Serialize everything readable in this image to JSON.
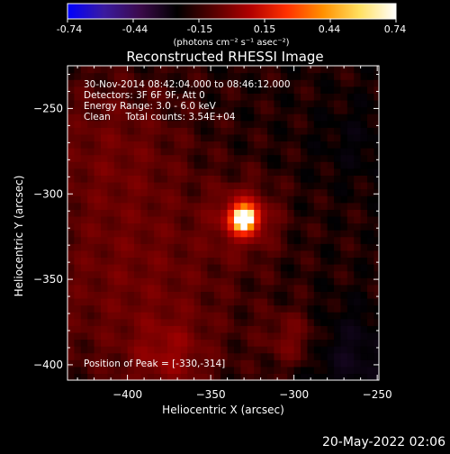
{
  "colorbar": {
    "tick_labels": [
      "-0.74",
      "-0.44",
      "-0.15",
      "0.15",
      "0.44",
      "0.74"
    ],
    "units_label": "(photons cm⁻² s⁻¹ asec⁻²)",
    "min": -0.74,
    "max": 0.74,
    "colors": [
      "#0000ff",
      "#3a1aa0",
      "#3b0a4a",
      "#000000",
      "#550000",
      "#b00000",
      "#ff3000",
      "#ff9000",
      "#ffe060",
      "#ffffff"
    ]
  },
  "info": {
    "line1": "30-Nov-2014 08:42:04.000 to 08:46:12.000",
    "line2": "Detectors: 3F 6F 9F, Att 0",
    "line3": "Energy Range: 3.0 - 6.0 keV",
    "line4": "Clean     Total counts: 3.54E+04",
    "peak": "Position of Peak = [-330,-314]"
  },
  "footer": {
    "timestamp": "20-May-2022 02:06"
  },
  "chart_data": {
    "type": "heatmap",
    "title": "Reconstructed RHESSI Image",
    "xlabel": "Heliocentric X (arcsec)",
    "ylabel": "Heliocentric Y (arcsec)",
    "xlim": [
      -436,
      -249
    ],
    "ylim": [
      -409,
      -225
    ],
    "xticks": [
      -400,
      -350,
      -300,
      -250
    ],
    "yticks": [
      -250,
      -300,
      -350,
      -400
    ],
    "xtick_labels": [
      "−400",
      "−350",
      "−300",
      "−250"
    ],
    "ytick_labels": [
      "−250",
      "−300",
      "−350",
      "−400"
    ],
    "peak": {
      "x": -330,
      "y": -314,
      "value": 0.74
    },
    "features": [
      {
        "x": -330,
        "y": -314,
        "sigma": 5.5,
        "amp": 0.74
      },
      {
        "x": -330,
        "y": -314,
        "sigma": 13,
        "amp": 0.18
      },
      {
        "x": -395,
        "y": -350,
        "sigma": 45,
        "amp": 0.1
      },
      {
        "x": -300,
        "y": -385,
        "sigma": 12,
        "amp": 0.12
      },
      {
        "x": -375,
        "y": -395,
        "sigma": 15,
        "amp": 0.12
      },
      {
        "x": -410,
        "y": -270,
        "sigma": 30,
        "amp": 0.08
      },
      {
        "x": -268,
        "y": -395,
        "sigma": 20,
        "amp": -0.1
      },
      {
        "x": -262,
        "y": -270,
        "sigma": 18,
        "amp": -0.05
      }
    ]
  }
}
